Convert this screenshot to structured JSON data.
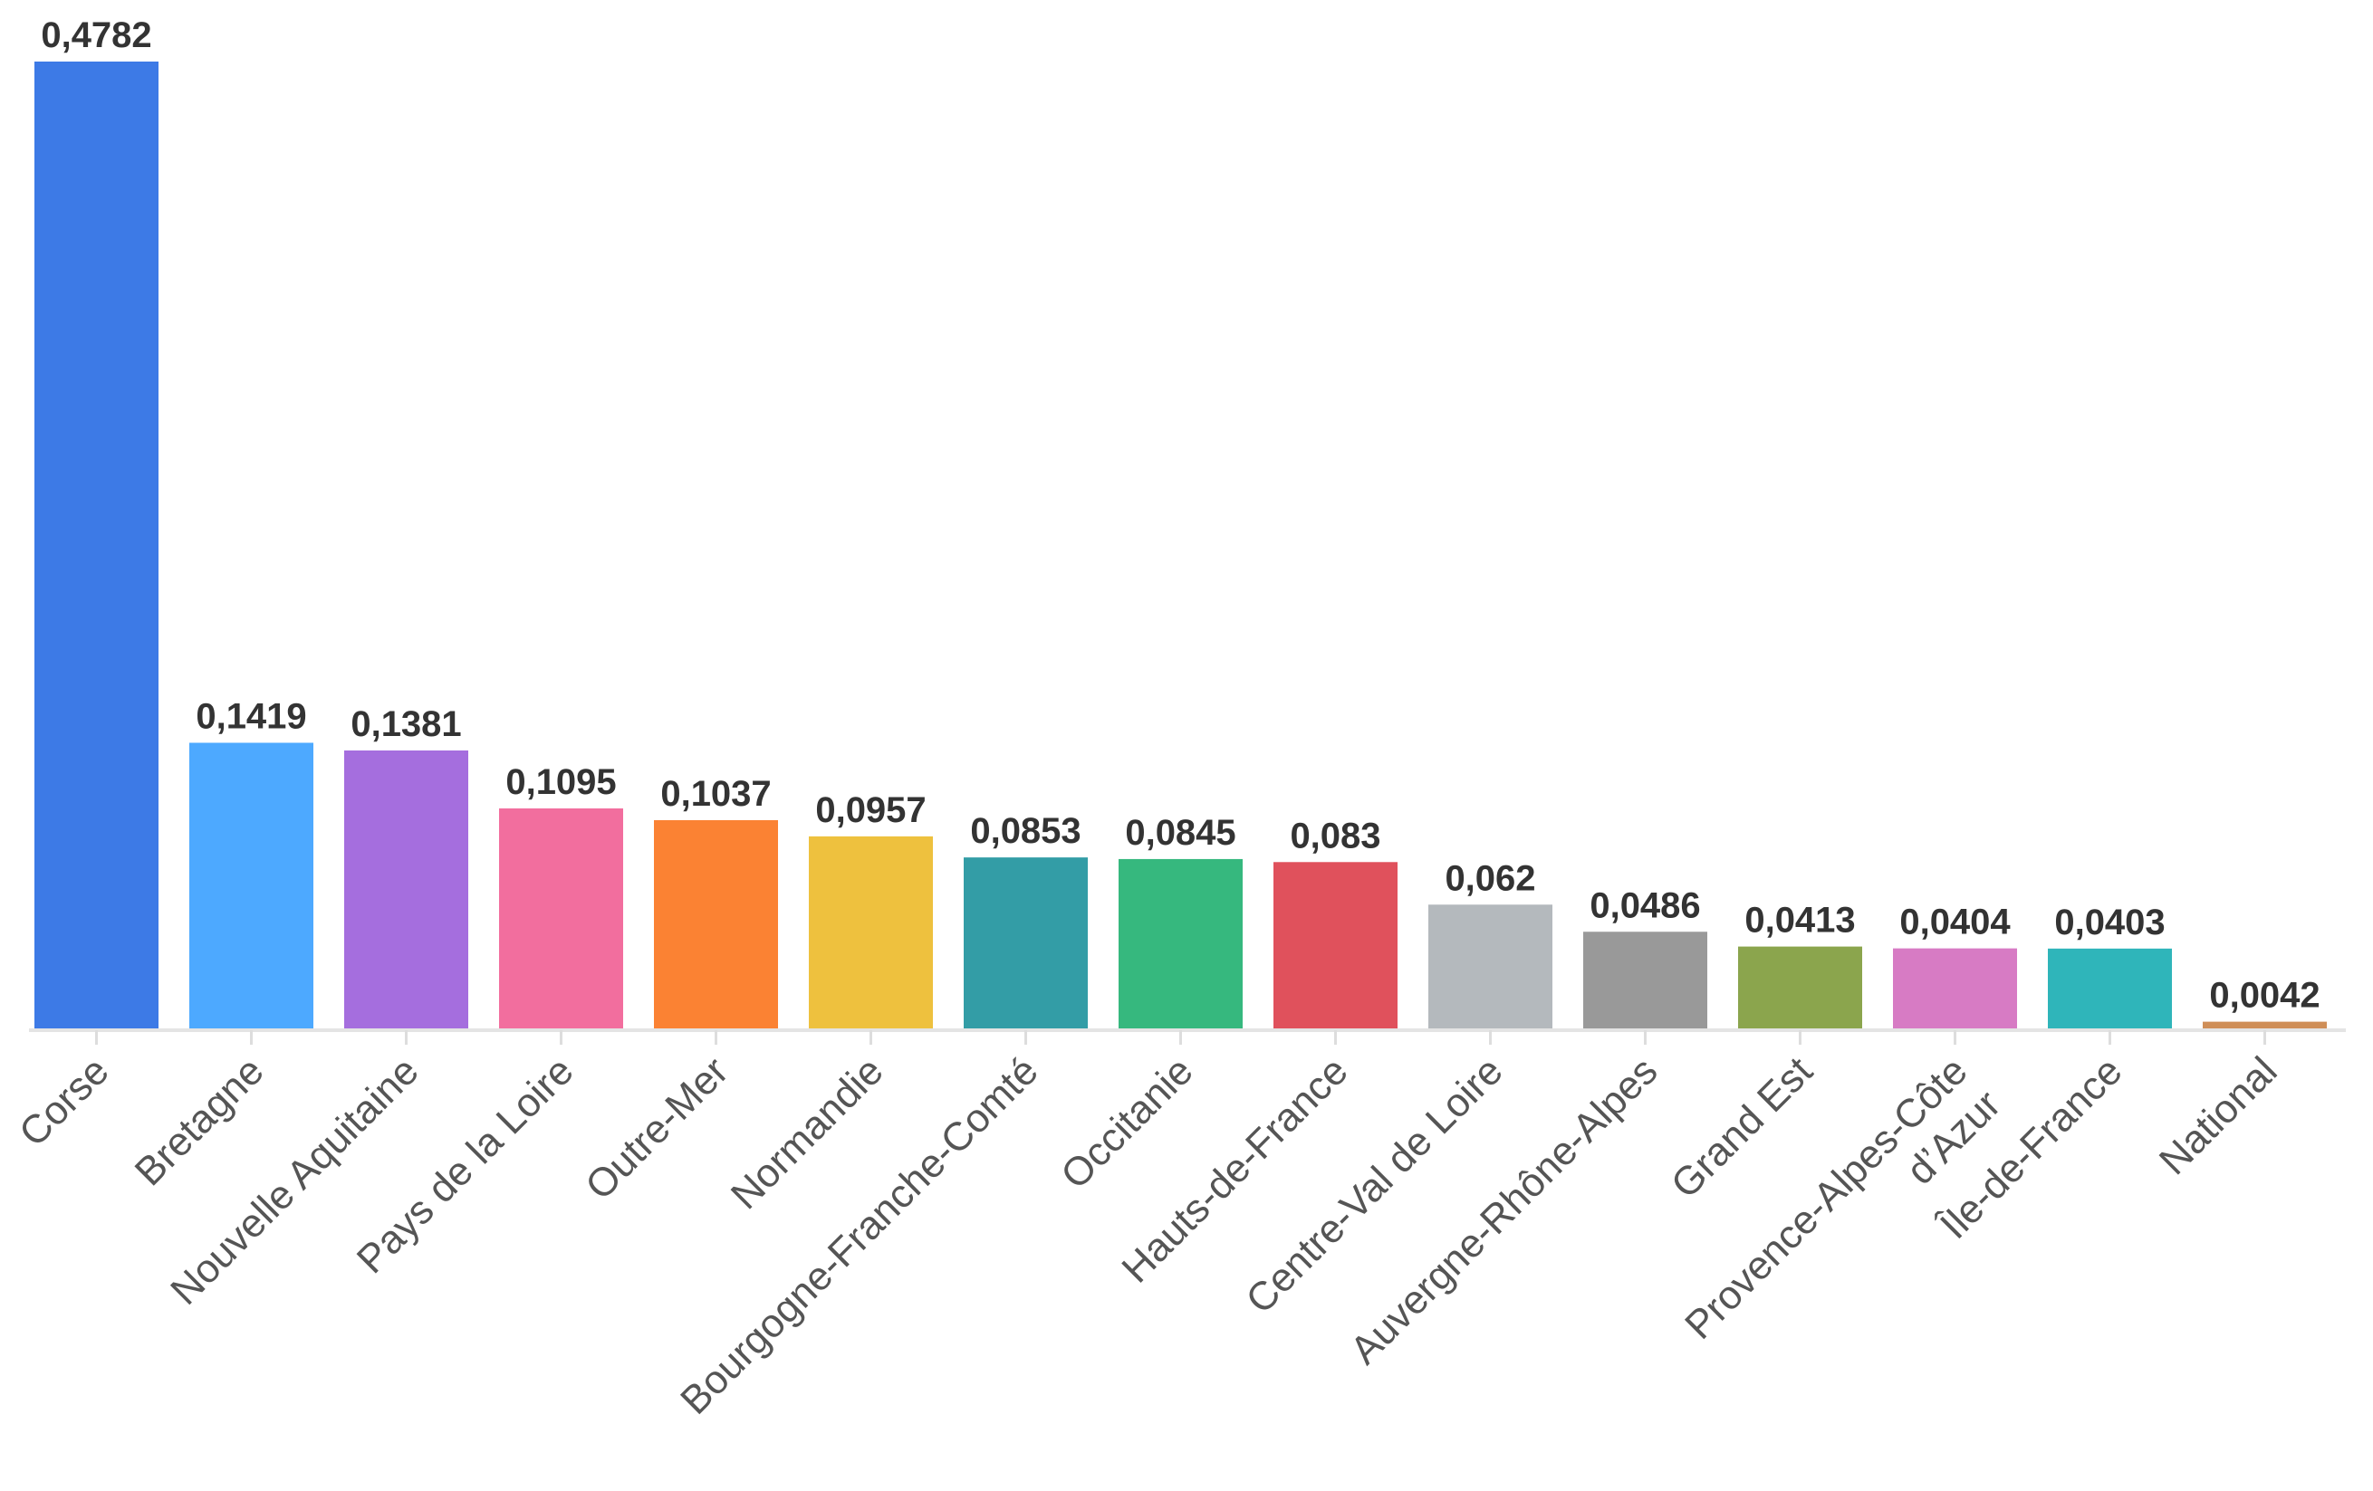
{
  "chart_data": {
    "type": "bar",
    "categories": [
      "Corse",
      "Bretagne",
      "Nouvelle Aquitaine",
      "Pays de la Loire",
      "Outre-Mer",
      "Normandie",
      "Bourgogne-Franche-Comté",
      "Occitanie",
      "Hauts-de-France",
      "Centre-Val de Loire",
      "Auvergne-Rhône-Alpes",
      "Grand Est",
      "Provence-Alpes-Côte d’Azur",
      "Île-de-France",
      "National"
    ],
    "values": [
      0.4782,
      0.1419,
      0.1381,
      0.1095,
      0.1037,
      0.0957,
      0.0853,
      0.0845,
      0.083,
      0.062,
      0.0486,
      0.0413,
      0.0404,
      0.0403,
      0.0042
    ],
    "value_labels": [
      "0,4782",
      "0,1419",
      "0,1381",
      "0,1095",
      "0,1037",
      "0,0957",
      "0,0853",
      "0,0845",
      "0,083",
      "0,062",
      "0,0486",
      "0,0413",
      "0,0404",
      "0,0403",
      "0,0042"
    ],
    "colors": [
      "#3D7AE6",
      "#4DA9FF",
      "#A56EDE",
      "#F26E9E",
      "#FB8233",
      "#EEC13E",
      "#339DA6",
      "#36B87E",
      "#E0515C",
      "#B4B9BD",
      "#999999",
      "#8BA54D",
      "#D77BC4",
      "#2FB5BA",
      "#CF8E57"
    ],
    "title": "",
    "xlabel": "",
    "ylabel": "",
    "ylim": [
      0,
      0.4782
    ],
    "grid": false,
    "legend": "none"
  }
}
